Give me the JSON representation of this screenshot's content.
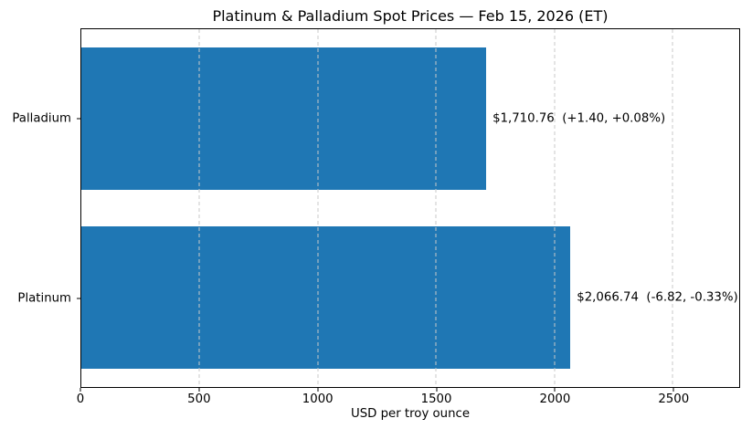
{
  "chart_data": {
    "type": "bar",
    "orientation": "horizontal",
    "title": "Platinum & Palladium Spot Prices — Feb 15, 2026 (ET)",
    "xlabel": "USD per troy ounce",
    "ylabel": "",
    "categories": [
      "Palladium",
      "Platinum"
    ],
    "values": [
      1710.76,
      2066.74
    ],
    "value_labels": [
      "$1,710.76  (+1.40, +0.08%)",
      "$2,066.74  (-6.82, -0.33%)"
    ],
    "changes": [
      1.4,
      -6.82
    ],
    "change_pcts": [
      "+0.08%",
      "-0.33%"
    ],
    "xlim": [
      0,
      2780
    ],
    "xticks": [
      0,
      500,
      1000,
      1500,
      2000,
      2500
    ],
    "grid": "vertical-dashed",
    "legend": "none",
    "bar_color": "#1f77b4",
    "grid_color": "#c9c9c9",
    "spine_color": "#000000",
    "background_color": "#ffffff"
  }
}
